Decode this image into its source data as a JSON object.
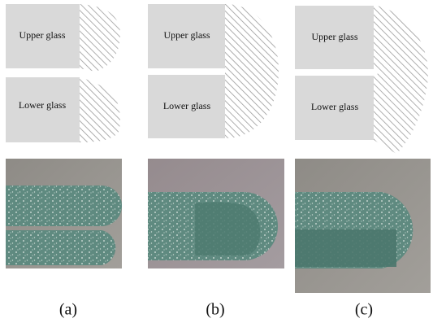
{
  "panels": [
    {
      "upper_label": "Upper glass",
      "lower_label": "Lower glass",
      "caption": "(a)"
    },
    {
      "upper_label": "Upper glass",
      "lower_label": "Lower glass",
      "caption": "(b)"
    },
    {
      "upper_label": "Upper glass",
      "lower_label": "Lower glass",
      "caption": "(c)"
    }
  ]
}
